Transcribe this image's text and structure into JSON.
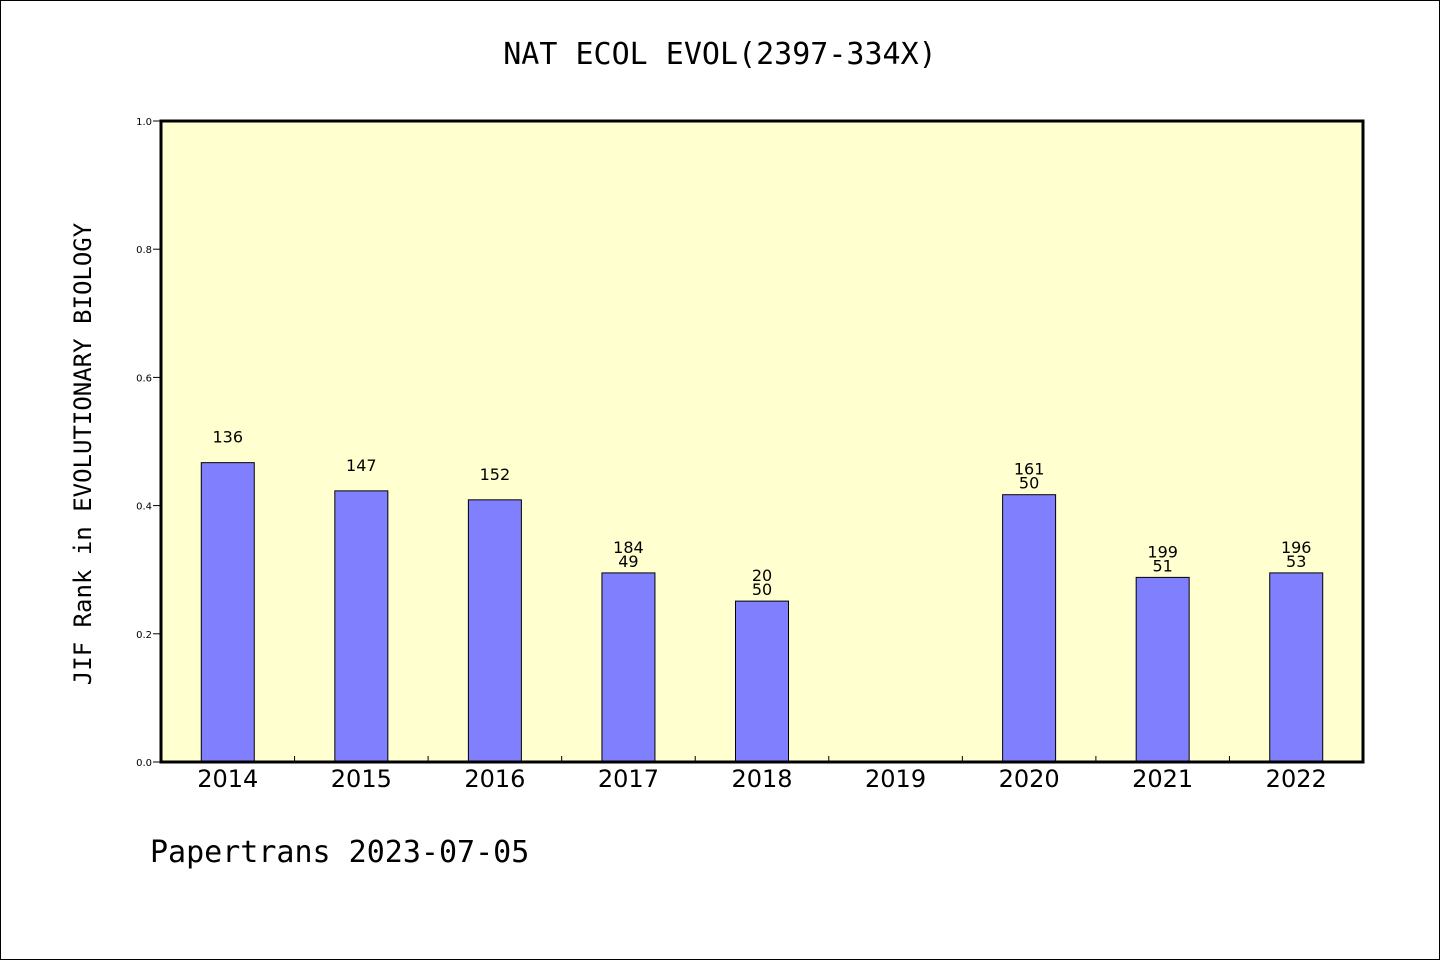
{
  "header": {
    "title": "NAT ECOL EVOL(2397-334X)"
  },
  "footer": {
    "text": "Papertrans 2023-07-05"
  },
  "colors": {
    "plot_bg": "#ffffd0",
    "bar": "#8080ff",
    "frame": "#000000"
  },
  "chart_data": {
    "type": "bar",
    "title": "NAT ECOL EVOL(2397-334X)",
    "xlabel": "",
    "ylabel": "JIF Rank in EVOLUTIONARY BIOLOGY",
    "ylim": [
      0,
      1.0
    ],
    "yticks": [
      "0.0",
      "0.2",
      "0.4",
      "0.6",
      "0.8",
      "1.0"
    ],
    "categories": [
      "2014",
      "2015",
      "2016",
      "2017",
      "2018",
      "2019",
      "2020",
      "2021",
      "2022"
    ],
    "values": [
      0.467,
      0.423,
      0.409,
      0.295,
      0.251,
      null,
      0.417,
      0.288,
      0.295
    ],
    "labels": [
      [
        "136"
      ],
      [
        "147"
      ],
      [
        "152"
      ],
      [
        "184",
        "49"
      ],
      [
        "20",
        "50"
      ],
      [],
      [
        "161",
        "50"
      ],
      [
        "199",
        "51"
      ],
      [
        "196",
        "53"
      ]
    ],
    "grid": false,
    "legend": "none"
  }
}
